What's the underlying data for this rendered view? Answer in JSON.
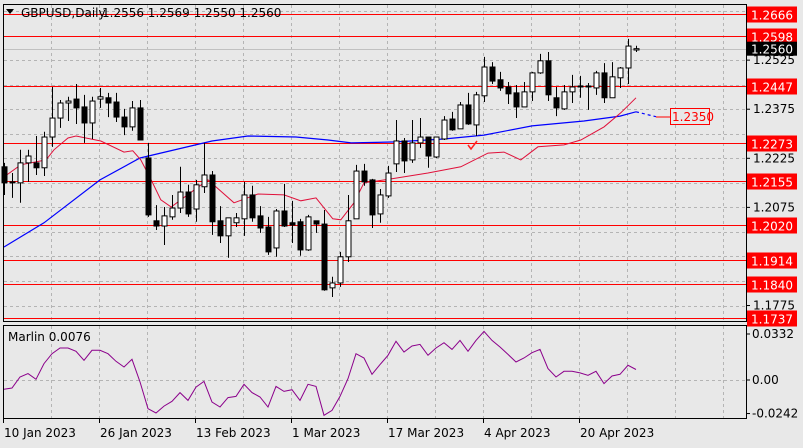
{
  "header": {
    "symbol_label": "GBPUSD,Daily",
    "ohlc": "1.2556 1.2569 1.2550 1.2560"
  },
  "colors": {
    "background": "#e8e8e8",
    "bull_body": "#ffffff",
    "bear_body": "#000000",
    "level_line": "#ff0000",
    "fast_ma": "#e0103a",
    "slow_ma": "#0000ff",
    "oscillator": "#8b008b",
    "grid": "#b4b4b4"
  },
  "price_axis": {
    "ticks": [
      "1.2525",
      "1.2375",
      "1.2225",
      "1.2075",
      "1.1775"
    ],
    "current_price": "1.2560"
  },
  "levels": [
    "1.2666",
    "1.2598",
    "1.2447",
    "1.2273",
    "1.2155",
    "1.2020",
    "1.1914",
    "1.1840",
    "1.1737"
  ],
  "forecast_label": "1.2350",
  "time_axis": [
    "10 Jan 2023",
    "26 Jan 2023",
    "13 Feb 2023",
    "1 Mar 2023",
    "17 Mar 2023",
    "4 Apr 2023",
    "20 Apr 2023"
  ],
  "indicator": {
    "label": "Marlin 0.0076",
    "ticks": [
      "0.0332",
      "0.00",
      "-0.0242"
    ],
    "values": [
      -0.0067,
      -0.0058,
      0.0022,
      0.0046,
      0.0005,
      0.0118,
      0.019,
      0.0231,
      0.0231,
      0.0207,
      0.0142,
      0.0214,
      0.0214,
      0.019,
      0.0135,
      0.0094,
      0.0149,
      -0.0014,
      -0.0207,
      -0.0238,
      -0.0188,
      -0.0154,
      -0.0091,
      -0.0147,
      -0.0051,
      -0.001,
      -0.0159,
      -0.0195,
      -0.0127,
      -0.0118,
      -0.0031,
      -0.0091,
      -0.0123,
      -0.0195,
      -0.0046,
      -0.0082,
      -0.007,
      -0.0147,
      -0.0031,
      -0.0046,
      -0.0255,
      -0.0219,
      -0.0118,
      0.001,
      0.019,
      0.0159,
      0.0041,
      0.0111,
      0.0178,
      0.0279,
      0.0202,
      0.0245,
      0.0257,
      0.0178,
      0.0231,
      0.0269,
      0.0221,
      0.0286,
      0.0207,
      0.0286,
      0.0351,
      0.0286,
      0.0238,
      0.0185,
      0.013,
      0.0159,
      0.0197,
      0.0221,
      0.0082,
      0.0022,
      0.0063,
      0.0063,
      0.0051,
      0.0034,
      0.0063,
      -0.0026,
      0.0029,
      0.0041,
      0.0106,
      0.0076
    ]
  },
  "chart_data": {
    "type": "candlestick",
    "ohlc": [
      [
        1.2199,
        1.2211,
        1.2113,
        1.215
      ],
      [
        1.2153,
        1.218,
        1.2104,
        1.215
      ],
      [
        1.215,
        1.2251,
        1.2089,
        1.2211
      ],
      [
        1.2211,
        1.2251,
        1.2153,
        1.2232
      ],
      [
        1.2211,
        1.2293,
        1.2174,
        1.2196
      ],
      [
        1.2196,
        1.2306,
        1.2171,
        1.229
      ],
      [
        1.229,
        1.2443,
        1.226,
        1.2348
      ],
      [
        1.2348,
        1.2403,
        1.2318,
        1.2394
      ],
      [
        1.2394,
        1.2413,
        1.2339,
        1.24
      ],
      [
        1.2406,
        1.2452,
        1.233,
        1.2379
      ],
      [
        1.2382,
        1.2419,
        1.2272,
        1.2333
      ],
      [
        1.2333,
        1.2413,
        1.2284,
        1.24
      ],
      [
        1.2406,
        1.244,
        1.2379,
        1.2413
      ],
      [
        1.241,
        1.2425,
        1.2351,
        1.2394
      ],
      [
        1.2397,
        1.2425,
        1.2336,
        1.2351
      ],
      [
        1.2351,
        1.2376,
        1.2296,
        1.2321
      ],
      [
        1.2321,
        1.24,
        1.2309,
        1.2379
      ],
      [
        1.2379,
        1.2403,
        1.2281,
        1.2281
      ],
      [
        1.2226,
        1.2272,
        1.2046,
        1.2052
      ],
      [
        1.2034,
        1.2082,
        1.2006,
        1.2018
      ],
      [
        1.2018,
        1.2076,
        1.196,
        1.2049
      ],
      [
        1.2046,
        1.2113,
        1.2037,
        1.2073
      ],
      [
        1.2073,
        1.2199,
        1.2058,
        1.2122
      ],
      [
        1.2122,
        1.2144,
        1.2046,
        1.2055
      ],
      [
        1.207,
        1.2159,
        1.2031,
        1.2144
      ],
      [
        1.2138,
        1.2272,
        1.2119,
        1.2174
      ],
      [
        1.2174,
        1.2186,
        1.1991,
        1.2031
      ],
      [
        1.2034,
        1.2079,
        1.1966,
        1.1988
      ],
      [
        1.1988,
        1.2043,
        1.1921,
        1.2043
      ],
      [
        1.2028,
        1.2058,
        1.2015,
        1.2043
      ],
      [
        1.204,
        1.2153,
        1.1988,
        1.2113
      ],
      [
        1.2113,
        1.2141,
        1.2031,
        1.2043
      ],
      [
        1.2049,
        1.2079,
        1.1997,
        1.2012
      ],
      [
        1.2015,
        1.2046,
        1.193,
        1.1939
      ],
      [
        1.1951,
        1.207,
        1.1924,
        1.2064
      ],
      [
        1.2064,
        1.2147,
        1.2015,
        1.2018
      ],
      [
        1.2028,
        1.2095,
        1.1966,
        1.2021
      ],
      [
        1.2031,
        1.204,
        1.1927,
        1.1945
      ],
      [
        1.1945,
        1.2052,
        1.1942,
        1.2046
      ],
      [
        1.2034,
        1.2034,
        1.1997,
        1.2024
      ],
      [
        1.2024,
        1.2067,
        1.182,
        1.1823
      ],
      [
        1.1829,
        1.1863,
        1.1801,
        1.1844
      ],
      [
        1.1844,
        1.1939,
        1.1832,
        1.1924
      ],
      [
        1.1924,
        1.2113,
        1.1908,
        1.2034
      ],
      [
        1.204,
        1.2205,
        1.204,
        1.2186
      ],
      [
        1.2186,
        1.2208,
        1.2141,
        1.2153
      ],
      [
        1.2159,
        1.2162,
        1.2012,
        1.2052
      ],
      [
        1.2055,
        1.2131,
        1.2028,
        1.2113
      ],
      [
        1.211,
        1.2202,
        1.2104,
        1.218
      ],
      [
        1.2208,
        1.2342,
        1.2183,
        1.2278
      ],
      [
        1.2278,
        1.2287,
        1.218,
        1.2217
      ],
      [
        1.222,
        1.2342,
        1.2211,
        1.2272
      ],
      [
        1.2272,
        1.2348,
        1.2257,
        1.229
      ],
      [
        1.229,
        1.229,
        1.2196,
        1.2232
      ],
      [
        1.2229,
        1.229,
        1.2226,
        1.229
      ],
      [
        1.2284,
        1.2354,
        1.2281,
        1.2342
      ],
      [
        1.2345,
        1.2367,
        1.2309,
        1.2312
      ],
      [
        1.2315,
        1.2397,
        1.2315,
        1.2388
      ],
      [
        1.2388,
        1.2425,
        1.2327,
        1.233
      ],
      [
        1.2327,
        1.2428,
        1.2293,
        1.2419
      ],
      [
        1.2416,
        1.2535,
        1.2397,
        1.2504
      ],
      [
        1.2504,
        1.2519,
        1.2452,
        1.2461
      ],
      [
        1.2465,
        1.2489,
        1.2431,
        1.244
      ],
      [
        1.2443,
        1.2458,
        1.2391,
        1.2422
      ],
      [
        1.2425,
        1.2449,
        1.2348,
        1.2382
      ],
      [
        1.2382,
        1.2458,
        1.2382,
        1.2428
      ],
      [
        1.2428,
        1.2489,
        1.24,
        1.2486
      ],
      [
        1.2486,
        1.2544,
        1.2483,
        1.2523
      ],
      [
        1.2523,
        1.255,
        1.24,
        1.2419
      ],
      [
        1.241,
        1.2443,
        1.2354,
        1.2379
      ],
      [
        1.2376,
        1.2449,
        1.2373,
        1.2428
      ],
      [
        1.2428,
        1.248,
        1.2394,
        1.2443
      ],
      [
        1.2446,
        1.2477,
        1.241,
        1.2443
      ],
      [
        1.2446,
        1.2455,
        1.2373,
        1.2443
      ],
      [
        1.244,
        1.2492,
        1.2419,
        1.2486
      ],
      [
        1.2486,
        1.2516,
        1.2394,
        1.241
      ],
      [
        1.241,
        1.2519,
        1.241,
        1.2474
      ],
      [
        1.2471,
        1.2504,
        1.244,
        1.2501
      ],
      [
        1.2501,
        1.259,
        1.2452,
        1.2568
      ],
      [
        1.2556,
        1.2569,
        1.255,
        1.256
      ]
    ],
    "fast_ma": [
      [
        0,
        1.2168
      ],
      [
        2.1,
        1.2205
      ],
      [
        5.25,
        1.222
      ],
      [
        6.25,
        1.2251
      ],
      [
        8,
        1.2287
      ],
      [
        9,
        1.2293
      ],
      [
        12.1,
        1.2278
      ],
      [
        15,
        1.2244
      ],
      [
        16.1,
        1.2248
      ],
      [
        17.1,
        1.222
      ],
      [
        18.4,
        1.2159
      ],
      [
        19.6,
        1.2098
      ],
      [
        20.9,
        1.2076
      ],
      [
        22.1,
        1.2098
      ],
      [
        25.5,
        1.2159
      ],
      [
        28.75,
        1.2089
      ],
      [
        31.75,
        1.2116
      ],
      [
        35,
        1.2113
      ],
      [
        37.1,
        1.2095
      ],
      [
        39,
        1.2104
      ],
      [
        41.1,
        1.204
      ],
      [
        42.1,
        1.2037
      ],
      [
        43.75,
        1.2089
      ],
      [
        45,
        1.215
      ],
      [
        48.4,
        1.2162
      ],
      [
        53,
        1.218
      ],
      [
        57.1,
        1.2199
      ],
      [
        60.5,
        1.2241
      ],
      [
        62.5,
        1.2244
      ],
      [
        64.6,
        1.222
      ],
      [
        66.75,
        1.226
      ],
      [
        70,
        1.2266
      ],
      [
        72.1,
        1.2281
      ],
      [
        75,
        1.2321
      ],
      [
        77.1,
        1.2364
      ],
      [
        79,
        1.241
      ]
    ],
    "slow_ma": [
      [
        0,
        1.1954
      ],
      [
        5,
        1.2028
      ],
      [
        12,
        1.2159
      ],
      [
        17,
        1.2226
      ],
      [
        26,
        1.2278
      ],
      [
        30.5,
        1.2293
      ],
      [
        36.5,
        1.229
      ],
      [
        40.5,
        1.2281
      ],
      [
        43.4,
        1.2272
      ],
      [
        49,
        1.2275
      ],
      [
        55,
        1.2284
      ],
      [
        60,
        1.2296
      ],
      [
        66,
        1.2324
      ],
      [
        72.5,
        1.2339
      ],
      [
        77,
        1.2354
      ],
      [
        79,
        1.2367
      ]
    ],
    "slow_ma_projection": [
      [
        79,
        1.2367
      ],
      [
        81.5,
        1.2352
      ]
    ],
    "ylim": [
      1.17,
      1.27
    ]
  }
}
